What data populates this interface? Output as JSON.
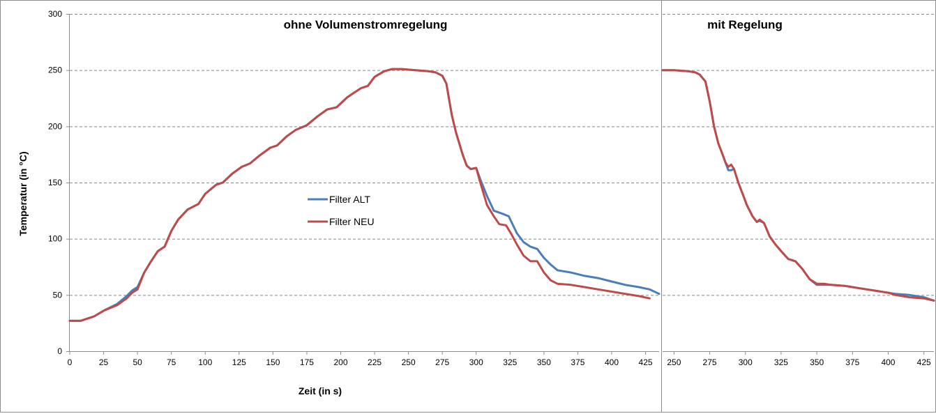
{
  "chart_data": {
    "type": "line",
    "xlabel": "Zeit (in s)",
    "ylabel": "Temperatur (in °C)",
    "ylim": [
      0,
      300
    ],
    "yticks": [
      0,
      50,
      100,
      150,
      200,
      250,
      300
    ],
    "grid": "horizontal dashed",
    "legend": {
      "placement": "center",
      "entries": [
        "Filter ALT",
        "Filter NEU"
      ]
    },
    "colors": {
      "Filter ALT": "#4a7ebb",
      "Filter NEU": "#be4b48",
      "grid": "#888888",
      "frame": "#8c8c8c"
    },
    "panels": [
      {
        "title": "ohne Volumenstromregelung",
        "xlim": [
          0,
          435
        ],
        "xticks": [
          0,
          25,
          50,
          75,
          100,
          125,
          150,
          175,
          200,
          225,
          250,
          275,
          300,
          325,
          350,
          375,
          400,
          425
        ],
        "series": [
          {
            "name": "Filter ALT",
            "x": [
              0,
              8,
              18,
              25,
              35,
              42,
              46,
              50,
              55,
              60,
              65,
              70,
              75,
              80,
              87,
              95,
              100,
              108,
              113,
              120,
              127,
              133,
              140,
              148,
              153,
              160,
              167,
              175,
              183,
              190,
              197,
              205,
              215,
              220,
              225,
              232,
              238,
              245,
              255,
              265,
              270,
              275,
              278,
              282,
              285,
              290,
              293,
              296,
              300,
              303,
              308,
              313,
              320,
              324,
              326,
              330,
              335,
              340,
              345,
              350,
              355,
              360,
              370,
              380,
              390,
              400,
              410,
              420,
              428,
              435
            ],
            "y": [
              27,
              27,
              31,
              36,
              42,
              49,
              54,
              57,
              70,
              80,
              89,
              93,
              107,
              117,
              126,
              131,
              140,
              148,
              150,
              158,
              164,
              167,
              174,
              181,
              183,
              191,
              197,
              201,
              209,
              215,
              217,
              226,
              234,
              236,
              244,
              249,
              251,
              251,
              250,
              249,
              248,
              245,
              238,
              210,
              195,
              175,
              165,
              162,
              163,
              153,
              138,
              125,
              122,
              120,
              115,
              105,
              97,
              93,
              91,
              83,
              77,
              72,
              70,
              67,
              65,
              62,
              59,
              57,
              55,
              51
            ]
          },
          {
            "name": "Filter NEU",
            "x": [
              0,
              8,
              18,
              25,
              35,
              42,
              46,
              50,
              55,
              60,
              65,
              70,
              75,
              80,
              87,
              95,
              100,
              108,
              113,
              120,
              127,
              133,
              140,
              148,
              153,
              160,
              167,
              175,
              183,
              190,
              197,
              205,
              215,
              220,
              225,
              232,
              238,
              245,
              255,
              265,
              270,
              275,
              278,
              282,
              285,
              290,
              293,
              296,
              300,
              303,
              308,
              313,
              317,
              322,
              326,
              330,
              335,
              340,
              345,
              350,
              355,
              360,
              370,
              380,
              390,
              400,
              410,
              420,
              428
            ],
            "y": [
              27,
              27,
              31,
              36,
              41,
              47,
              52,
              55,
              70,
              80,
              89,
              93,
              107,
              117,
              126,
              131,
              140,
              148,
              150,
              158,
              164,
              167,
              174,
              181,
              183,
              191,
              197,
              201,
              209,
              215,
              217,
              226,
              234,
              236,
              244,
              249,
              251,
              251,
              250,
              249,
              248,
              245,
              238,
              210,
              195,
              175,
              165,
              162,
              163,
              150,
              130,
              120,
              113,
              112,
              104,
              95,
              85,
              80,
              80,
              70,
              63,
              60,
              59,
              57,
              55,
              53,
              51,
              49,
              47
            ]
          }
        ]
      },
      {
        "title": "mit Regelung",
        "xlim": [
          242,
          432
        ],
        "xticks": [
          250,
          275,
          300,
          325,
          350,
          375,
          400,
          425
        ],
        "series": [
          {
            "name": "Filter ALT",
            "x": [
              242,
              250,
              260,
              265,
              268,
              272,
              275,
              278,
              281,
              284,
              286,
              288,
              290,
              292,
              295,
              298,
              301,
              305,
              308,
              310,
              313,
              317,
              321,
              325,
              330,
              335,
              340,
              345,
              350,
              355,
              360,
              370,
              380,
              390,
              400,
              405,
              415,
              425,
              432
            ],
            "y": [
              250,
              250,
              249,
              248,
              246,
              240,
              222,
              200,
              185,
              175,
              168,
              161,
              161,
              162,
              150,
              140,
              130,
              120,
              115,
              116,
              114,
              102,
              95,
              89,
              82,
              80,
              73,
              64,
              59,
              59,
              59,
              58,
              56,
              54,
              52,
              51,
              50,
              48,
              45
            ]
          },
          {
            "name": "Filter NEU",
            "x": [
              242,
              250,
              260,
              265,
              268,
              272,
              275,
              278,
              281,
              284,
              286,
              288,
              290,
              292,
              295,
              298,
              301,
              305,
              308,
              310,
              313,
              317,
              321,
              325,
              330,
              335,
              340,
              345,
              350,
              355,
              360,
              370,
              380,
              390,
              400,
              405,
              415,
              425,
              432
            ],
            "y": [
              250,
              250,
              249,
              248,
              246,
              240,
              222,
              200,
              185,
              175,
              168,
              164,
              166,
              162,
              150,
              140,
              130,
              120,
              115,
              117,
              114,
              102,
              95,
              89,
              82,
              80,
              73,
              64,
              60,
              60,
              59,
              58,
              56,
              54,
              52,
              50,
              48,
              47,
              45
            ]
          }
        ]
      }
    ]
  }
}
